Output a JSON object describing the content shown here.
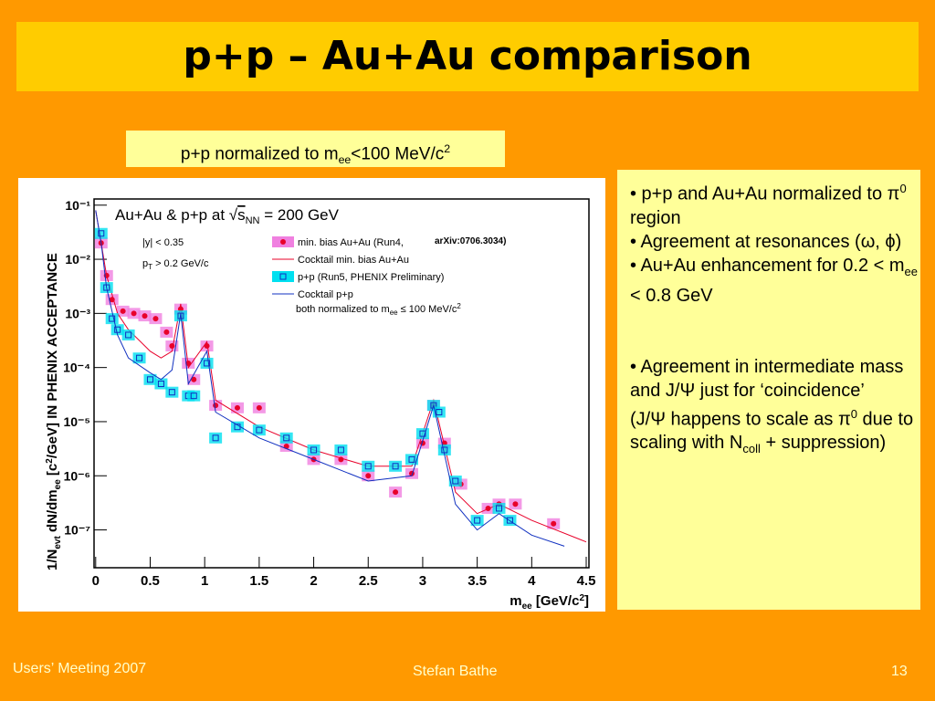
{
  "title": "p+p – Au+Au comparison",
  "caption": [
    "p+p normalized to m",
    "ee",
    "<100 MeV/c",
    "2"
  ],
  "bullets": [
    [
      "• p+p and Au+Au normalized to π",
      "0",
      " region"
    ],
    [
      "• Agreement at resonances (ω, ϕ)"
    ],
    [
      "• Au+Au enhancement for 0.2 < m",
      "ee",
      " < 0.8 GeV"
    ],
    [
      "•  Agreement in intermediate mass and J/Ψ just for ‘coincidence’"
    ],
    [
      "(J/Ψ happens to scale as π",
      "0",
      " due to scaling with N",
      "coll",
      " + suppression)"
    ]
  ],
  "footer": {
    "left": "Users’ Meeting 2007",
    "center": "Stefan Bathe",
    "right": "13"
  },
  "chart_data": {
    "type": "line",
    "log_y": true,
    "xlabel": [
      "m",
      "ee",
      " [GeV/c",
      "2",
      "]"
    ],
    "ylabel": [
      "1/N",
      "evt",
      " dN/dm",
      "ee",
      " [c",
      "2",
      "/GeV] IN PHENIX ACCEPTANCE"
    ],
    "annotations": {
      "energy": [
        "Au+Au & p+p at √",
        "s",
        "NN",
        " = 200 GeV"
      ],
      "rapidity": "|y| < 0.35",
      "pt": [
        "p",
        "T",
        " > 0.2 GeV/c"
      ],
      "ref": "arXiv:0706.3034)",
      "norm": [
        "both normalized to m",
        "ee",
        " ≤ 100 MeV/c",
        "2"
      ]
    },
    "xlim": [
      -0.015,
      4.525
    ],
    "ylim": [
      2e-08,
      0.13
    ],
    "xticks": [
      0,
      0.5,
      1,
      1.5,
      2,
      2.5,
      3,
      3.5,
      4,
      4.5
    ],
    "yticks": [
      {
        "value": 1e-07,
        "label": "10⁻⁷"
      },
      {
        "value": 1e-06,
        "label": "10⁻⁶"
      },
      {
        "value": 1e-05,
        "label": "10⁻⁵"
      },
      {
        "value": 0.0001,
        "label": "10⁻⁴"
      },
      {
        "value": 0.001,
        "label": "10⁻³"
      },
      {
        "value": 0.01,
        "label": "10⁻²"
      },
      {
        "value": 0.1,
        "label": "10⁻¹"
      }
    ],
    "series": [
      {
        "name": "min. bias Au+Au (Run4,",
        "color": "#e8002a",
        "band": "#f080e0",
        "marker": "circle",
        "x": [
          0.05,
          0.1,
          0.15,
          0.25,
          0.35,
          0.45,
          0.55,
          0.65,
          0.7,
          0.78,
          0.85,
          0.9,
          1.02,
          1.1,
          1.3,
          1.5,
          1.75,
          2.0,
          2.25,
          2.5,
          2.75,
          2.9,
          3.0,
          3.1,
          3.2,
          3.35,
          3.6,
          3.7,
          3.85,
          4.2
        ],
        "values": [
          0.02,
          0.005,
          0.0018,
          0.0011,
          0.001,
          0.0009,
          0.0008,
          0.00045,
          0.00025,
          0.0012,
          0.00012,
          6e-05,
          0.00025,
          2e-05,
          1.8e-05,
          1.8e-05,
          3.5e-06,
          2e-06,
          2e-06,
          1e-06,
          5e-07,
          1.1e-06,
          4e-06,
          2e-05,
          4e-06,
          7e-07,
          2.5e-07,
          3e-07,
          3e-07,
          1.3e-07
        ]
      },
      {
        "name": "Cocktail min. bias Au+Au",
        "color": "#e8002a",
        "marker": null,
        "x": [
          0,
          0.05,
          0.1,
          0.2,
          0.3,
          0.5,
          0.6,
          0.7,
          0.78,
          0.85,
          1.02,
          1.1,
          1.5,
          2.0,
          2.5,
          2.9,
          3.1,
          3.3,
          3.5,
          3.7,
          4.0,
          4.5
        ],
        "values": [
          0.08,
          0.02,
          0.005,
          0.001,
          0.0005,
          0.0002,
          0.00015,
          0.0002,
          0.0015,
          0.0001,
          0.0003,
          2.5e-05,
          8e-06,
          3e-06,
          1.5e-06,
          1.5e-06,
          2.5e-05,
          5e-07,
          2e-07,
          3e-07,
          1.5e-07,
          6e-08
        ]
      },
      {
        "name": "p+p (Run5, PHENIX Preliminary)",
        "color": "#1030c0",
        "band": "#00e0f0",
        "marker": "square",
        "x": [
          0.05,
          0.1,
          0.15,
          0.2,
          0.3,
          0.4,
          0.5,
          0.6,
          0.7,
          0.78,
          0.85,
          0.9,
          1.02,
          1.1,
          1.3,
          1.5,
          1.75,
          2.0,
          2.25,
          2.5,
          2.75,
          2.9,
          3.0,
          3.1,
          3.15,
          3.2,
          3.3,
          3.5,
          3.7,
          3.8
        ],
        "values": [
          0.03,
          0.003,
          0.0008,
          0.0005,
          0.0004,
          0.00015,
          6e-05,
          5e-05,
          3.5e-05,
          0.0009,
          3e-05,
          3e-05,
          0.00012,
          5e-06,
          8e-06,
          7e-06,
          5e-06,
          3e-06,
          3e-06,
          1.5e-06,
          1.5e-06,
          2e-06,
          6e-06,
          2e-05,
          1.5e-05,
          3e-06,
          8e-07,
          1.5e-07,
          2.5e-07,
          1.5e-07
        ]
      },
      {
        "name": "Cocktail p+p",
        "color": "#1030c0",
        "marker": null,
        "x": [
          0,
          0.05,
          0.1,
          0.2,
          0.3,
          0.5,
          0.6,
          0.7,
          0.78,
          0.85,
          1.02,
          1.1,
          1.5,
          2.0,
          2.5,
          2.9,
          3.1,
          3.3,
          3.5,
          3.7,
          4.0,
          4.3
        ],
        "values": [
          0.08,
          0.02,
          0.003,
          0.0004,
          0.00015,
          8e-05,
          6e-05,
          9e-05,
          0.001,
          5e-05,
          0.0002,
          1.5e-05,
          5e-06,
          2e-06,
          8e-07,
          1e-06,
          2e-05,
          3e-07,
          1e-07,
          2e-07,
          8e-08,
          5e-08
        ]
      }
    ]
  }
}
